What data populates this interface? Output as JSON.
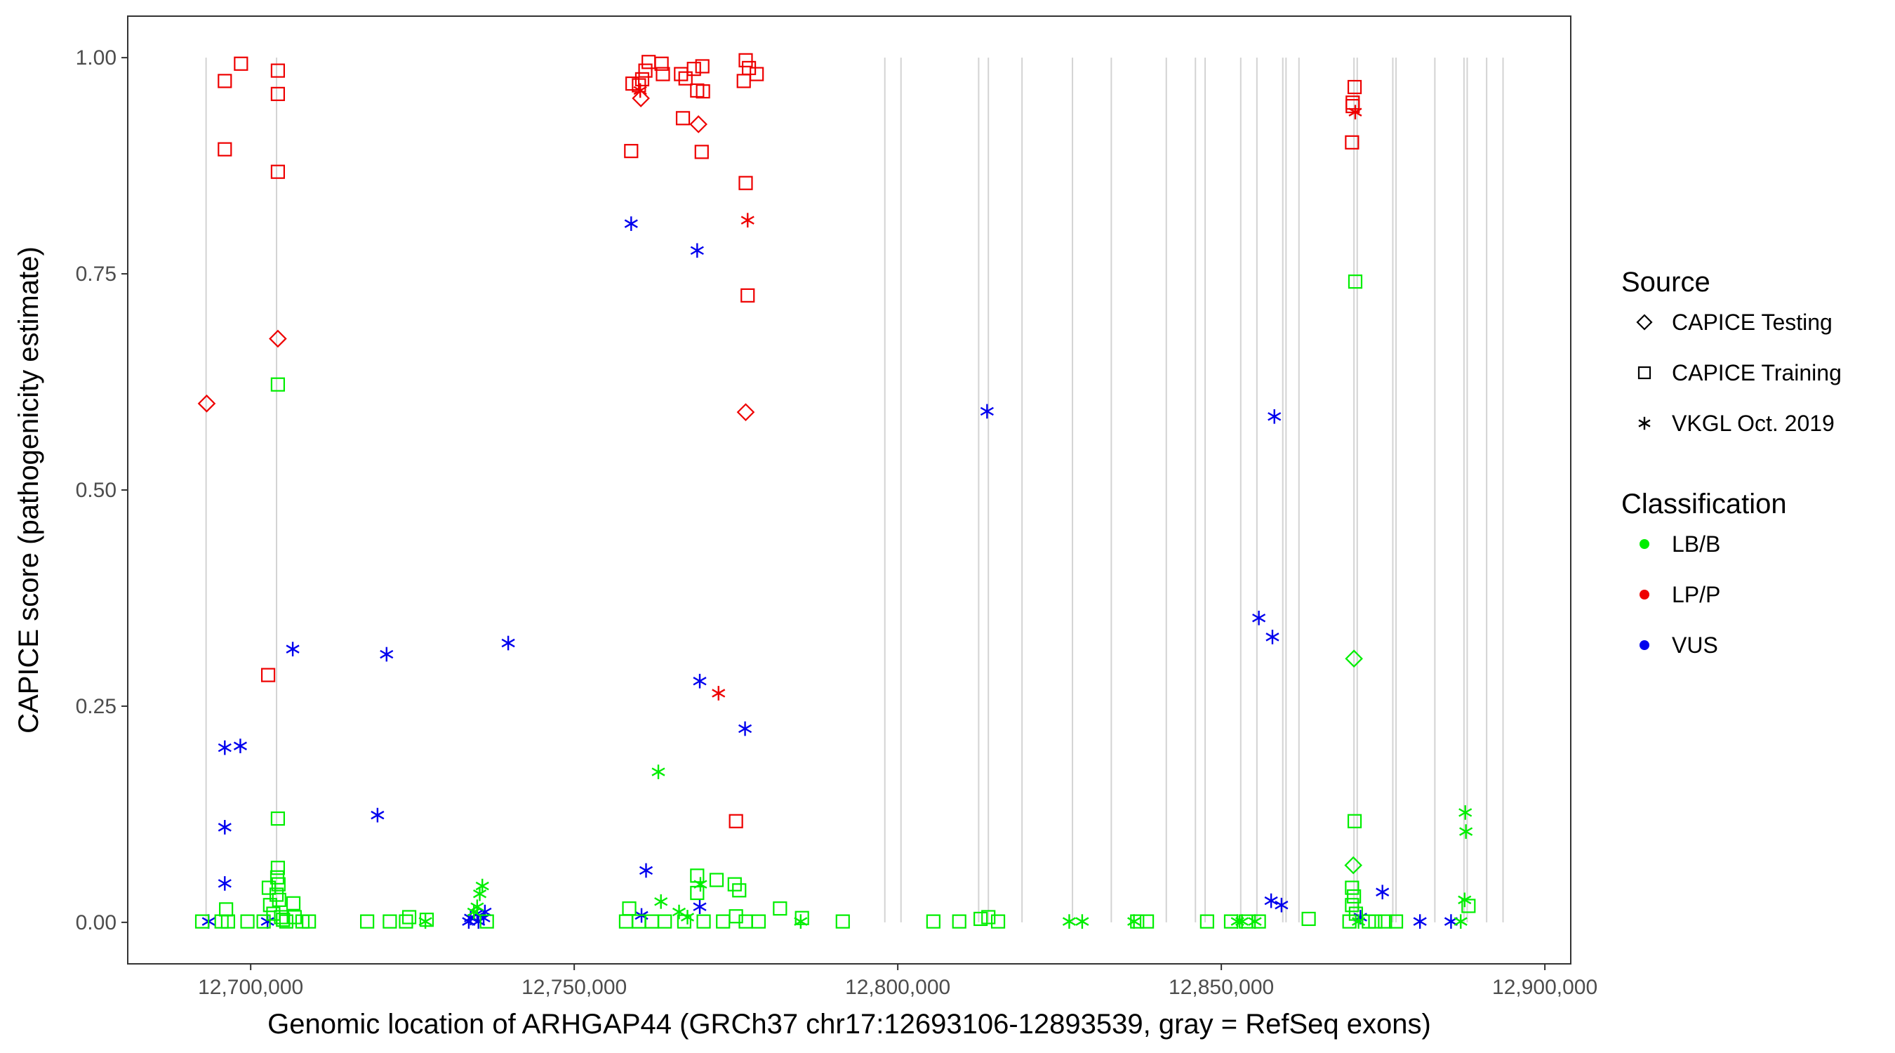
{
  "chart_data": {
    "type": "scatter",
    "xlabel": "Genomic location of ARHGAP44 (GRCh37 chr17:12693106-12893539, gray = RefSeq exons)",
    "ylabel": "CAPICE score (pathogenicity estimate)",
    "xlim": [
      12681000,
      12904000
    ],
    "ylim": [
      -0.048,
      1.048
    ],
    "x_ticks": [
      12700000,
      12750000,
      12800000,
      12850000,
      12900000
    ],
    "x_tick_labels": [
      "12,700,000",
      "12,750,000",
      "12,800,000",
      "12,850,000",
      "12,900,000"
    ],
    "y_ticks": [
      0,
      0.25,
      0.5,
      0.75,
      1
    ],
    "y_tick_labels": [
      "0.00",
      "0.25",
      "0.50",
      "0.75",
      "1.00"
    ],
    "grid": false,
    "legend_placement": "right",
    "exon_lines_color": "#d3d3d3",
    "exon_lines": [
      12693106,
      12704000,
      12798000,
      12800500,
      12812500,
      12814000,
      12819200,
      12827000,
      12833000,
      12841500,
      12846000,
      12847500,
      12853000,
      12855500,
      12859500,
      12860000,
      12862000,
      12870500,
      12871000,
      12876500,
      12877000,
      12883000,
      12887500,
      12888000,
      12891000,
      12893539
    ],
    "legends": [
      {
        "title": "Source",
        "entries": [
          {
            "label": "CAPICE Testing",
            "shape": "diamond"
          },
          {
            "label": "CAPICE Training",
            "shape": "square"
          },
          {
            "label": "VKGL Oct. 2019",
            "shape": "asterisk"
          }
        ]
      },
      {
        "title": "Classification",
        "entries": [
          {
            "label": "LB/B",
            "color": "#00ee00"
          },
          {
            "label": "LP/P",
            "color": "#ee0000"
          },
          {
            "label": "VUS",
            "color": "#0000ee"
          }
        ]
      }
    ],
    "series": [
      {
        "name": "LP/P",
        "color": "#ee0000",
        "points": [
          [
            12696000,
            0.973,
            "square"
          ],
          [
            12698500,
            0.993,
            "square"
          ],
          [
            12704200,
            0.985,
            "square"
          ],
          [
            12704200,
            0.958,
            "square"
          ],
          [
            12696000,
            0.894,
            "square"
          ],
          [
            12704200,
            0.868,
            "square"
          ],
          [
            12704200,
            0.675,
            "diamond"
          ],
          [
            12693200,
            0.6,
            "diamond"
          ],
          [
            12702700,
            0.286,
            "square"
          ],
          [
            12759000,
            0.97,
            "square"
          ],
          [
            12760000,
            0.968,
            "square"
          ],
          [
            12761000,
            0.985,
            "square"
          ],
          [
            12761500,
            0.995,
            "square"
          ],
          [
            12763500,
            0.993,
            "square"
          ],
          [
            12763700,
            0.981,
            "square"
          ],
          [
            12760500,
            0.975,
            "square"
          ],
          [
            12766500,
            0.981,
            "square"
          ],
          [
            12767200,
            0.976,
            "square"
          ],
          [
            12768500,
            0.987,
            "square"
          ],
          [
            12769800,
            0.99,
            "square"
          ],
          [
            12769000,
            0.962,
            "square"
          ],
          [
            12769900,
            0.961,
            "square"
          ],
          [
            12776500,
            0.997,
            "square"
          ],
          [
            12777000,
            0.988,
            "square"
          ],
          [
            12778200,
            0.981,
            "square"
          ],
          [
            12776200,
            0.973,
            "square"
          ],
          [
            12760200,
            0.962,
            "asterisk"
          ],
          [
            12760300,
            0.953,
            "diamond"
          ],
          [
            12766800,
            0.93,
            "square"
          ],
          [
            12769200,
            0.923,
            "diamond"
          ],
          [
            12758800,
            0.892,
            "square"
          ],
          [
            12769700,
            0.891,
            "square"
          ],
          [
            12776500,
            0.855,
            "square"
          ],
          [
            12776800,
            0.812,
            "asterisk"
          ],
          [
            12776800,
            0.725,
            "square"
          ],
          [
            12776500,
            0.59,
            "diamond"
          ],
          [
            12772300,
            0.265,
            "asterisk"
          ],
          [
            12775000,
            0.117,
            "square"
          ],
          [
            12870600,
            0.966,
            "square"
          ],
          [
            12870300,
            0.948,
            "square"
          ],
          [
            12870300,
            0.944,
            "square"
          ],
          [
            12870700,
            0.937,
            "asterisk"
          ],
          [
            12870200,
            0.902,
            "square"
          ]
        ]
      },
      {
        "name": "VUS",
        "color": "#0000ee",
        "points": [
          [
            12758800,
            0.808,
            "asterisk"
          ],
          [
            12769000,
            0.777,
            "asterisk"
          ],
          [
            12813800,
            0.591,
            "asterisk"
          ],
          [
            12858200,
            0.585,
            "asterisk"
          ],
          [
            12706500,
            0.316,
            "asterisk"
          ],
          [
            12721000,
            0.31,
            "asterisk"
          ],
          [
            12739800,
            0.323,
            "asterisk"
          ],
          [
            12696000,
            0.202,
            "asterisk"
          ],
          [
            12698400,
            0.204,
            "asterisk"
          ],
          [
            12696000,
            0.11,
            "asterisk"
          ],
          [
            12719600,
            0.124,
            "asterisk"
          ],
          [
            12696000,
            0.045,
            "asterisk"
          ],
          [
            12769400,
            0.279,
            "asterisk"
          ],
          [
            12776400,
            0.224,
            "asterisk"
          ],
          [
            12761100,
            0.06,
            "asterisk"
          ],
          [
            12760400,
            0.008,
            "asterisk"
          ],
          [
            12769400,
            0.018,
            "asterisk"
          ],
          [
            12855800,
            0.352,
            "asterisk"
          ],
          [
            12857900,
            0.33,
            "asterisk"
          ],
          [
            12857700,
            0.025,
            "asterisk"
          ],
          [
            12859300,
            0.02,
            "asterisk"
          ],
          [
            12874900,
            0.035,
            "asterisk"
          ],
          [
            12871500,
            0.006,
            "asterisk"
          ],
          [
            12880700,
            0.001,
            "asterisk"
          ],
          [
            12885500,
            0.001,
            "asterisk"
          ],
          [
            12693500,
            0.001,
            "asterisk"
          ],
          [
            12702600,
            0.001,
            "asterisk"
          ],
          [
            12734000,
            0.005,
            "asterisk"
          ],
          [
            12735000,
            0.01,
            "asterisk"
          ],
          [
            12736000,
            0.005,
            "asterisk"
          ],
          [
            12735200,
            0.001,
            "asterisk"
          ],
          [
            12733700,
            0.001,
            "asterisk"
          ],
          [
            12736200,
            0.012,
            "asterisk"
          ]
        ]
      },
      {
        "name": "LB/B",
        "color": "#00ee00",
        "points": [
          [
            12704200,
            0.622,
            "square"
          ],
          [
            12704200,
            0.12,
            "square"
          ],
          [
            12704200,
            0.063,
            "square"
          ],
          [
            12704100,
            0.052,
            "square"
          ],
          [
            12704300,
            0.044,
            "square"
          ],
          [
            12702800,
            0.04,
            "square"
          ],
          [
            12704000,
            0.032,
            "square"
          ],
          [
            12704400,
            0.026,
            "square"
          ],
          [
            12703000,
            0.02,
            "square"
          ],
          [
            12706600,
            0.022,
            "square"
          ],
          [
            12696200,
            0.015,
            "square"
          ],
          [
            12703500,
            0.01,
            "square"
          ],
          [
            12704700,
            0.006,
            "square"
          ],
          [
            12705000,
            0.003,
            "square"
          ],
          [
            12692500,
            0.001,
            "square"
          ],
          [
            12695500,
            0.001,
            "square"
          ],
          [
            12696500,
            0.001,
            "square"
          ],
          [
            12699500,
            0.001,
            "square"
          ],
          [
            12702000,
            0.001,
            "square"
          ],
          [
            12705500,
            0.001,
            "square"
          ],
          [
            12706800,
            0.006,
            "square"
          ],
          [
            12708000,
            0.001,
            "square"
          ],
          [
            12709000,
            0.001,
            "square"
          ],
          [
            12718000,
            0.001,
            "square"
          ],
          [
            12721500,
            0.001,
            "square"
          ],
          [
            12724000,
            0.001,
            "square"
          ],
          [
            12724500,
            0.006,
            "square"
          ],
          [
            12727000,
            0.001,
            "asterisk"
          ],
          [
            12727200,
            0.003,
            "square"
          ],
          [
            12735800,
            0.042,
            "asterisk"
          ],
          [
            12735400,
            0.033,
            "asterisk"
          ],
          [
            12735000,
            0.018,
            "asterisk"
          ],
          [
            12734500,
            0.012,
            "asterisk"
          ],
          [
            12736500,
            0.001,
            "square"
          ],
          [
            12763000,
            0.174,
            "asterisk"
          ],
          [
            12758500,
            0.016,
            "square"
          ],
          [
            12763400,
            0.024,
            "asterisk"
          ],
          [
            12758000,
            0.001,
            "square"
          ],
          [
            12760000,
            0.001,
            "square"
          ],
          [
            12762000,
            0.001,
            "square"
          ],
          [
            12764000,
            0.001,
            "square"
          ],
          [
            12767000,
            0.001,
            "square"
          ],
          [
            12769000,
            0.054,
            "square"
          ],
          [
            12772000,
            0.049,
            "square"
          ],
          [
            12769500,
            0.044,
            "asterisk"
          ],
          [
            12774800,
            0.044,
            "square"
          ],
          [
            12769000,
            0.034,
            "square"
          ],
          [
            12775500,
            0.037,
            "square"
          ],
          [
            12766200,
            0.012,
            "asterisk"
          ],
          [
            12767500,
            0.006,
            "asterisk"
          ],
          [
            12770000,
            0.001,
            "square"
          ],
          [
            12773000,
            0.001,
            "square"
          ],
          [
            12775000,
            0.007,
            "square"
          ],
          [
            12776500,
            0.001,
            "square"
          ],
          [
            12778500,
            0.001,
            "square"
          ],
          [
            12781800,
            0.016,
            "square"
          ],
          [
            12785200,
            0.005,
            "square"
          ],
          [
            12785000,
            0.001,
            "asterisk"
          ],
          [
            12791500,
            0.001,
            "square"
          ],
          [
            12805500,
            0.001,
            "square"
          ],
          [
            12809500,
            0.001,
            "square"
          ],
          [
            12812800,
            0.004,
            "square"
          ],
          [
            12814000,
            0.006,
            "square"
          ],
          [
            12815500,
            0.001,
            "square"
          ],
          [
            12826500,
            0.001,
            "asterisk"
          ],
          [
            12828500,
            0.001,
            "asterisk"
          ],
          [
            12836500,
            0.001,
            "asterisk"
          ],
          [
            12837000,
            0.001,
            "square"
          ],
          [
            12838500,
            0.001,
            "square"
          ],
          [
            12847800,
            0.001,
            "square"
          ],
          [
            12851500,
            0.001,
            "square"
          ],
          [
            12852500,
            0.001,
            "asterisk"
          ],
          [
            12853200,
            0.001,
            "asterisk"
          ],
          [
            12853800,
            0.001,
            "square"
          ],
          [
            12855200,
            0.001,
            "asterisk"
          ],
          [
            12855800,
            0.001,
            "square"
          ],
          [
            12863500,
            0.004,
            "square"
          ],
          [
            12870700,
            0.741,
            "square"
          ],
          [
            12870500,
            0.305,
            "diamond"
          ],
          [
            12870600,
            0.117,
            "square"
          ],
          [
            12870400,
            0.066,
            "diamond"
          ],
          [
            12870200,
            0.04,
            "square"
          ],
          [
            12870500,
            0.03,
            "square"
          ],
          [
            12870200,
            0.02,
            "square"
          ],
          [
            12870800,
            0.01,
            "square"
          ],
          [
            12871200,
            0.001,
            "asterisk"
          ],
          [
            12869800,
            0.001,
            "square"
          ],
          [
            12872800,
            0.001,
            "square"
          ],
          [
            12873800,
            0.001,
            "square"
          ],
          [
            12875300,
            0.001,
            "square"
          ],
          [
            12877000,
            0.001,
            "square"
          ],
          [
            12887700,
            0.127,
            "asterisk"
          ],
          [
            12887800,
            0.105,
            "asterisk"
          ],
          [
            12887600,
            0.026,
            "asterisk"
          ],
          [
            12888200,
            0.019,
            "square"
          ],
          [
            12887000,
            0.001,
            "asterisk"
          ]
        ]
      }
    ]
  }
}
